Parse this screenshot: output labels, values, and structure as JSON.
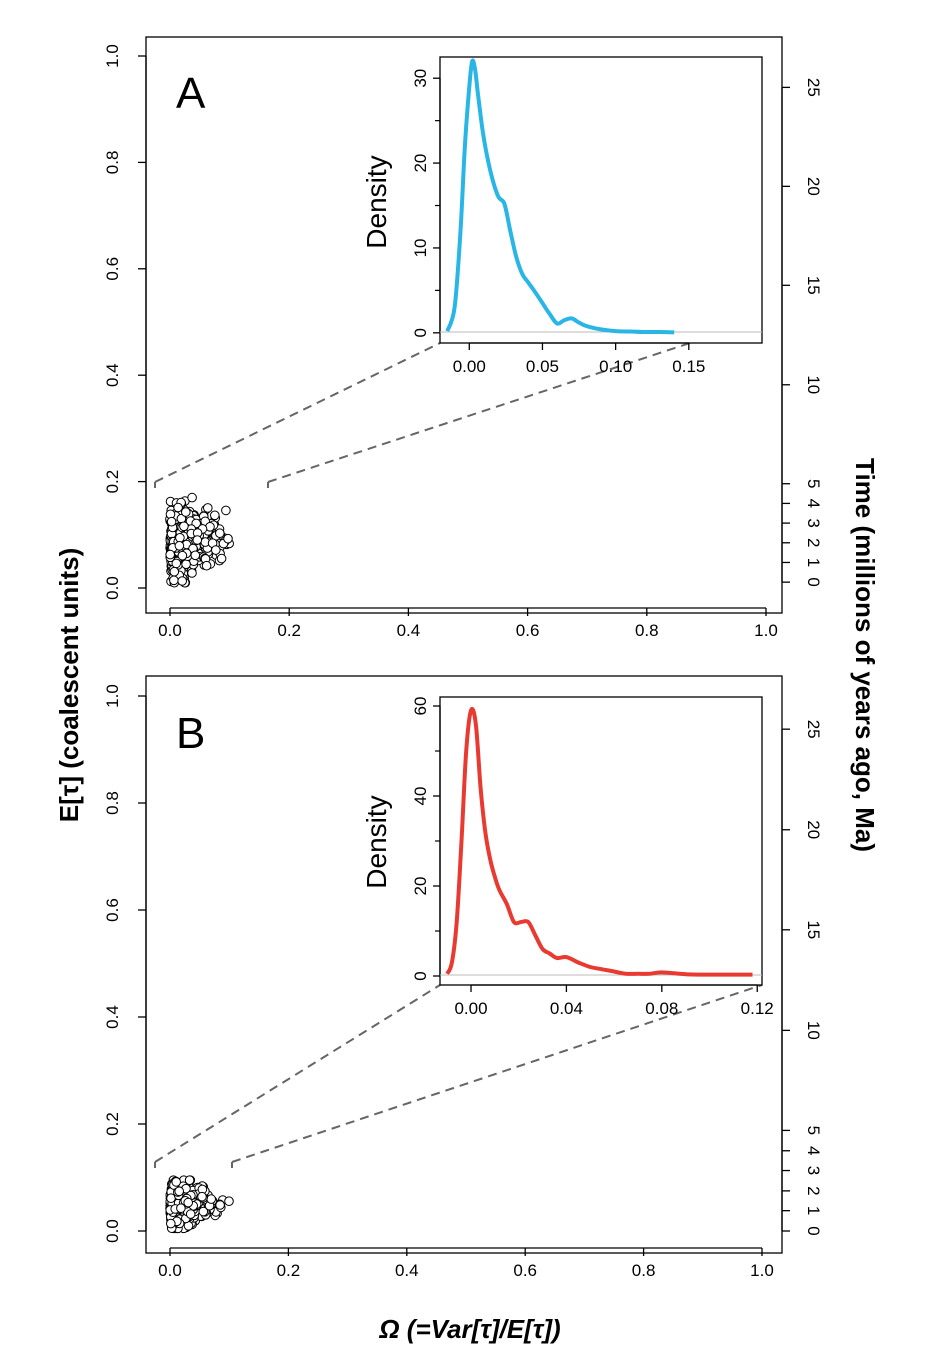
{
  "figure": {
    "ylabel": "E[τ] (coalescent units)",
    "xlabel": "Ω (=Var[τ]/E[τ])",
    "right_label": "Time (millions of years ago, Ma)"
  },
  "chart_data": [
    {
      "id": "A",
      "type": "scatter",
      "panel_label": "A",
      "x_ticks": [
        "0.0",
        "0.2",
        "0.4",
        "0.6",
        "0.8",
        "1.0"
      ],
      "y_ticks": [
        "0.0",
        "0.2",
        "0.4",
        "0.6",
        "0.8",
        "1.0"
      ],
      "xlim": [
        0,
        1
      ],
      "ylim": [
        0,
        1
      ],
      "right_axis": {
        "ticks": [
          {
            "label": "0",
            "y": 0.011
          },
          {
            "label": "1",
            "y": 0.048
          },
          {
            "label": "2",
            "y": 0.085
          },
          {
            "label": "3",
            "y": 0.122
          },
          {
            "label": "4",
            "y": 0.159
          },
          {
            "label": "5",
            "y": 0.196
          },
          {
            "label": "10",
            "y": 0.382
          },
          {
            "label": "15",
            "y": 0.569
          },
          {
            "label": "20",
            "y": 0.755
          },
          {
            "label": "25",
            "y": 0.941
          }
        ]
      },
      "points_summary": {
        "x_range": [
          0,
          0.13
        ],
        "y_range": [
          0.01,
          0.17
        ],
        "n_points": 500
      },
      "inset": {
        "type": "line",
        "ylabel": "Density",
        "x_ticks": [
          "0.00",
          "0.05",
          "0.10",
          "0.15"
        ],
        "x_tick_values": [
          0,
          0.05,
          0.1,
          0.15
        ],
        "y_ticks": [
          "0",
          "10",
          "20",
          "30"
        ],
        "y_tick_values": [
          0,
          10,
          20,
          30
        ],
        "xlim": [
          -0.02,
          0.2
        ],
        "ylim": [
          -1.2,
          32.5
        ],
        "color": "#29b6e6",
        "x": [
          -0.015,
          -0.01,
          -0.006,
          -0.003,
          0,
          0.002,
          0.004,
          0.006,
          0.009,
          0.012,
          0.016,
          0.02,
          0.024,
          0.028,
          0.032,
          0.036,
          0.04,
          0.045,
          0.05,
          0.055,
          0.06,
          0.065,
          0.07,
          0.075,
          0.08,
          0.09,
          0.1,
          0.11,
          0.12,
          0.13,
          0.14
        ],
        "y": [
          0.2,
          3,
          12,
          22,
          29,
          32,
          31,
          28,
          24,
          21,
          18,
          16,
          15.2,
          12,
          9,
          7,
          6,
          4.8,
          3.5,
          2.2,
          1.1,
          1.5,
          1.7,
          1.2,
          0.8,
          0.4,
          0.2,
          0.15,
          0.1,
          0.1,
          0.05
        ]
      }
    },
    {
      "id": "B",
      "type": "scatter",
      "panel_label": "B",
      "x_ticks": [
        "0.0",
        "0.2",
        "0.4",
        "0.6",
        "0.8",
        "1.0"
      ],
      "y_ticks": [
        "0.0",
        "0.2",
        "0.4",
        "0.6",
        "0.8",
        "1.0"
      ],
      "xlim": [
        0,
        1
      ],
      "ylim": [
        0,
        1
      ],
      "right_axis": {
        "ticks": [
          {
            "label": "0",
            "y": 0.0
          },
          {
            "label": "1",
            "y": 0.038
          },
          {
            "label": "2",
            "y": 0.075
          },
          {
            "label": "3",
            "y": 0.113
          },
          {
            "label": "4",
            "y": 0.15
          },
          {
            "label": "5",
            "y": 0.188
          },
          {
            "label": "10",
            "y": 0.375
          },
          {
            "label": "15",
            "y": 0.563
          },
          {
            "label": "20",
            "y": 0.75
          },
          {
            "label": "25",
            "y": 0.938
          }
        ]
      },
      "points_summary": {
        "x_range": [
          0,
          0.11
        ],
        "y_range": [
          0.005,
          0.095
        ],
        "n_points": 500
      },
      "inset": {
        "type": "line",
        "ylabel": "Density",
        "x_ticks": [
          "0.00",
          "0.04",
          "0.08",
          "0.12"
        ],
        "x_tick_values": [
          0,
          0.04,
          0.08,
          0.12
        ],
        "y_ticks": [
          "0",
          "20",
          "40",
          "60"
        ],
        "y_tick_values": [
          0,
          20,
          40,
          60
        ],
        "xlim": [
          -0.013,
          0.122
        ],
        "ylim": [
          -2,
          62
        ],
        "color": "#e83a30",
        "x": [
          -0.01,
          -0.008,
          -0.006,
          -0.004,
          -0.002,
          0,
          0.002,
          0.004,
          0.006,
          0.008,
          0.01,
          0.012,
          0.015,
          0.018,
          0.021,
          0.024,
          0.027,
          0.03,
          0.033,
          0.036,
          0.04,
          0.045,
          0.05,
          0.055,
          0.06,
          0.065,
          0.07,
          0.075,
          0.08,
          0.09,
          0.1,
          0.11,
          0.118
        ],
        "y": [
          0.5,
          3,
          12,
          30,
          50,
          59,
          56,
          42,
          32,
          26,
          22,
          19,
          16,
          12,
          12,
          12,
          9,
          6,
          5,
          4,
          4.2,
          3,
          2,
          1.5,
          1,
          0.5,
          0.5,
          0.5,
          0.8,
          0.4,
          0.3,
          0.3,
          0.3
        ]
      }
    }
  ]
}
